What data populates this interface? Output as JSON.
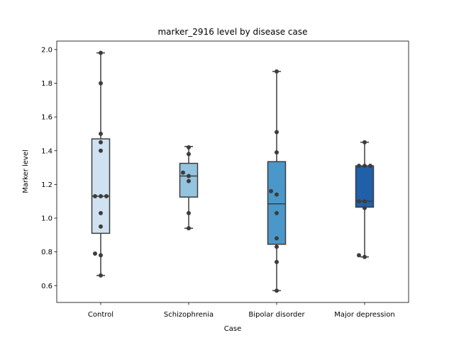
{
  "chart_data": {
    "type": "box",
    "title": "marker_2916 level by disease case",
    "xlabel": "Case",
    "ylabel": "Marker level",
    "ylim": [
      0.5,
      2.05
    ],
    "yticks": [
      0.6,
      0.8,
      1.0,
      1.2,
      1.4,
      1.6,
      1.8,
      2.0
    ],
    "ytick_labels": [
      "0.6",
      "0.8",
      "1.0",
      "1.2",
      "1.4",
      "1.6",
      "1.8",
      "2.0"
    ],
    "grid": false,
    "legend": "none",
    "categories": [
      "Control",
      "Schizophrenia",
      "Bipolar disorder",
      "Major depression"
    ],
    "colors": [
      "#d0e1f2",
      "#94c4df",
      "#4a98c9",
      "#2060a8"
    ],
    "point_color": "#3d3d3d",
    "boxes": [
      {
        "category": "Control",
        "whisker_low": 0.66,
        "q1": 0.91,
        "median": 1.13,
        "q3": 1.47,
        "whisker_high": 1.98
      },
      {
        "category": "Schizophrenia",
        "whisker_low": 0.94,
        "q1": 1.125,
        "median": 1.25,
        "q3": 1.325,
        "whisker_high": 1.425
      },
      {
        "category": "Bipolar disorder",
        "whisker_low": 0.57,
        "q1": 0.845,
        "median": 1.085,
        "q3": 1.335,
        "whisker_high": 1.87
      },
      {
        "category": "Major depression",
        "whisker_low": 0.77,
        "q1": 1.065,
        "median": 1.1,
        "q3": 1.31,
        "whisker_high": 1.45
      }
    ],
    "points": [
      [
        0.66,
        0.78,
        0.79,
        0.95,
        1.03,
        1.13,
        1.13,
        1.13,
        1.4,
        1.45,
        1.5,
        1.8,
        1.98
      ],
      [
        0.94,
        1.03,
        1.22,
        1.25,
        1.27,
        1.38,
        1.42
      ],
      [
        0.57,
        0.74,
        0.83,
        0.88,
        1.03,
        1.14,
        1.16,
        1.39,
        1.51,
        1.87
      ],
      [
        0.77,
        0.78,
        1.06,
        1.1,
        1.1,
        1.31,
        1.31,
        1.31,
        1.45
      ]
    ]
  }
}
